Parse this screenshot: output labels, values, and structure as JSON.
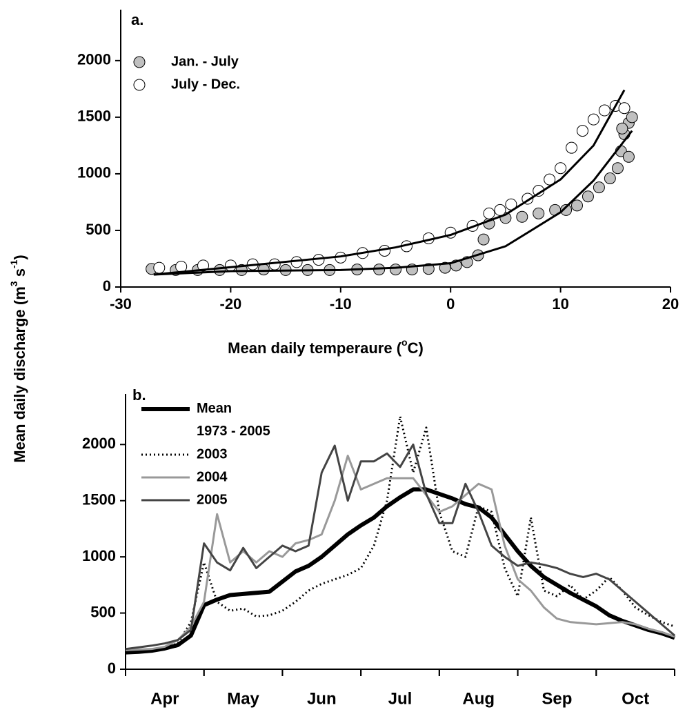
{
  "shared_ylabel": [
    "Mean daily discharge (m",
    "3",
    " s",
    "-1",
    ")"
  ],
  "chart_data": [
    {
      "type": "scatter",
      "title": "a.",
      "xlabel": [
        "Mean daily temperaure (",
        "o",
        "C)"
      ],
      "xlim": [
        -30,
        20
      ],
      "xticks": [
        -30,
        -20,
        -10,
        0,
        10,
        20
      ],
      "ylim": [
        0,
        2450
      ],
      "yticks": [
        0,
        500,
        1000,
        1500,
        2000
      ],
      "legend": "top-left",
      "series": [
        {
          "name": "Jan. - July",
          "color": "#c0c0c0",
          "x": [
            -27.2,
            -25,
            -23,
            -21,
            -19,
            -17,
            -15,
            -13,
            -11,
            -8.5,
            -6.5,
            -5,
            -3.5,
            -2,
            -0.5,
            0.5,
            1.5,
            2.5,
            3,
            3.5,
            5,
            6.5,
            8,
            9.5,
            10.5,
            11.5,
            12.5,
            13.5,
            14.5,
            15.2,
            15.5,
            15.8,
            16.2,
            16.5,
            16.2,
            15.6
          ],
          "y": [
            160,
            150,
            150,
            150,
            150,
            155,
            150,
            150,
            150,
            155,
            155,
            155,
            155,
            160,
            170,
            190,
            220,
            280,
            420,
            560,
            610,
            620,
            650,
            680,
            680,
            720,
            800,
            880,
            960,
            1050,
            1200,
            1350,
            1450,
            1500,
            1150,
            1400
          ]
        },
        {
          "name": "July - Dec.",
          "color": "#ffffff",
          "x": [
            -26.5,
            -24.5,
            -22.5,
            -20,
            -18,
            -16,
            -14,
            -12,
            -10,
            -8,
            -6,
            -4,
            -2,
            0,
            2,
            3.5,
            4.5,
            5.5,
            7,
            8,
            9,
            10,
            11,
            12,
            13,
            14,
            15,
            15.8
          ],
          "y": [
            170,
            180,
            190,
            190,
            200,
            200,
            220,
            240,
            260,
            300,
            320,
            360,
            430,
            480,
            540,
            650,
            680,
            730,
            780,
            850,
            950,
            1050,
            1230,
            1380,
            1480,
            1560,
            1600,
            1580
          ]
        }
      ],
      "trend_lines": [
        {
          "x": [
            -27,
            -20,
            -10,
            -5,
            0,
            5,
            10,
            13,
            15.8
          ],
          "y": [
            110,
            175,
            270,
            350,
            460,
            640,
            950,
            1250,
            1740
          ]
        },
        {
          "x": [
            -27,
            -20,
            -10,
            -5,
            0,
            5,
            10,
            13,
            16.5
          ],
          "y": [
            110,
            140,
            150,
            170,
            210,
            360,
            660,
            940,
            1380
          ]
        }
      ]
    },
    {
      "type": "line",
      "title": "b.",
      "categories": [
        null,
        null,
        null,
        "Apr",
        null,
        null,
        null,
        null,
        null,
        "May",
        null,
        null,
        null,
        null,
        null,
        "Jun",
        null,
        null,
        null,
        null,
        null,
        "Jul",
        null,
        null,
        null,
        null,
        null,
        "Aug",
        null,
        null,
        null,
        null,
        null,
        "Sep",
        null,
        null,
        null,
        null,
        null,
        "Oct",
        null,
        null,
        null
      ],
      "ylim": [
        0,
        2450
      ],
      "yticks": [
        0,
        500,
        1000,
        1500,
        2000
      ],
      "legend": "top-left",
      "series": [
        {
          "name": "Mean\n1973 - 2005",
          "color": "#000000",
          "width": 6,
          "dash": "none",
          "values": [
            150,
            155,
            165,
            185,
            215,
            300,
            570,
            620,
            660,
            670,
            680,
            690,
            780,
            870,
            920,
            1000,
            1100,
            1200,
            1280,
            1350,
            1450,
            1530,
            1600,
            1600,
            1560,
            1520,
            1470,
            1440,
            1350,
            1200,
            1050,
            920,
            820,
            750,
            680,
            620,
            560,
            480,
            430,
            390,
            350,
            320,
            280
          ]
        },
        {
          "name": "2003",
          "color": "#000000",
          "width": 3,
          "dash": "2 4",
          "values": [
            150,
            150,
            160,
            190,
            230,
            420,
            950,
            600,
            520,
            540,
            470,
            480,
            520,
            600,
            700,
            760,
            800,
            840,
            900,
            1100,
            1500,
            2250,
            1750,
            2150,
            1400,
            1050,
            1000,
            1450,
            1400,
            900,
            650,
            1350,
            700,
            650,
            750,
            620,
            700,
            820,
            700,
            550,
            480,
            420,
            380
          ]
        },
        {
          "name": "2004",
          "color": "#999999",
          "width": 3,
          "dash": "none",
          "values": [
            170,
            175,
            180,
            200,
            260,
            380,
            600,
            1380,
            950,
            1050,
            950,
            1050,
            1000,
            1120,
            1150,
            1200,
            1500,
            1900,
            1600,
            1650,
            1700,
            1700,
            1700,
            1550,
            1400,
            1450,
            1550,
            1650,
            1600,
            1100,
            800,
            700,
            550,
            450,
            420,
            410,
            400,
            410,
            420,
            400,
            360,
            330,
            290
          ]
        },
        {
          "name": "2005",
          "color": "#444444",
          "width": 3,
          "dash": "none",
          "values": [
            180,
            195,
            210,
            230,
            260,
            350,
            1120,
            950,
            880,
            1080,
            900,
            1000,
            1100,
            1050,
            1100,
            1750,
            1990,
            1500,
            1850,
            1850,
            1920,
            1800,
            2000,
            1560,
            1300,
            1300,
            1650,
            1400,
            1100,
            1000,
            920,
            950,
            930,
            900,
            850,
            820,
            850,
            800,
            700,
            600,
            500,
            400,
            300
          ]
        }
      ]
    }
  ]
}
